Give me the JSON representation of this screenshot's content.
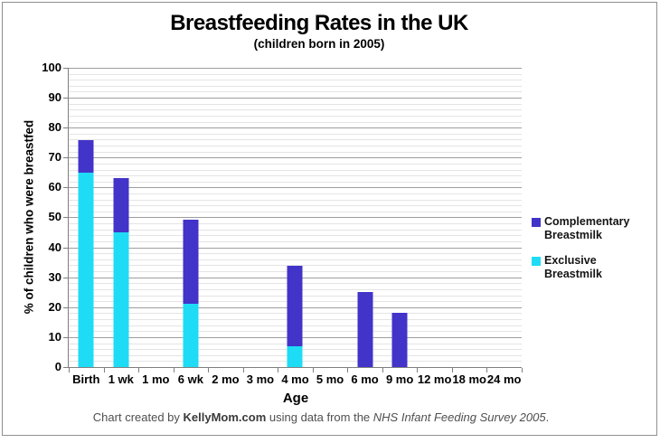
{
  "chart_data": {
    "type": "bar",
    "stacked": true,
    "title": "Breastfeeding Rates in the UK",
    "subtitle": "(children born in 2005)",
    "xlabel": "Age",
    "ylabel": "% of children who were breastfed",
    "ylim": [
      0,
      100
    ],
    "ytick_interval": 10,
    "minor_grid_interval": 2,
    "grid": "on",
    "categories": [
      "Birth",
      "1 wk",
      "1 mo",
      "6 wk",
      "2 mo",
      "3 mo",
      "4 mo",
      "5 mo",
      "6 mo",
      "9 mo",
      "12 mo",
      "18 mo",
      "24 mo"
    ],
    "series": [
      {
        "name": "Exclusive Breastmilk",
        "color": "#1edcf5",
        "values": [
          65,
          45,
          0,
          21,
          0,
          0,
          7,
          0,
          0,
          0,
          0,
          0,
          0
        ]
      },
      {
        "name": "Complementary Breastmilk",
        "color": "#4233c9",
        "values": [
          11,
          18,
          0,
          28,
          0,
          0,
          27,
          0,
          25,
          18,
          0,
          0,
          0
        ]
      }
    ],
    "totals": [
      76,
      63,
      0,
      49,
      0,
      0,
      34,
      0,
      25,
      18,
      0,
      0,
      0
    ],
    "legend": {
      "position": "right",
      "entries": [
        {
          "label": "Complementary Breastmilk",
          "color": "#4233c9"
        },
        {
          "label": "Exclusive Breastmilk",
          "color": "#1edcf5"
        }
      ]
    },
    "footer_segments": [
      {
        "text": "Chart created by ",
        "style": "normal"
      },
      {
        "text": "KellyMom.com",
        "style": "bold"
      },
      {
        "text": " using data from the ",
        "style": "normal"
      },
      {
        "text": "NHS Infant Feeding Survey 2005",
        "style": "italic"
      },
      {
        "text": ".",
        "style": "normal"
      }
    ],
    "style_colors": {
      "major_gridline": "#9e9e9e",
      "minor_gridline": "#e4e4e4",
      "axis_line": "#7f7f7f",
      "footer_text": "#4f4f4f"
    }
  }
}
